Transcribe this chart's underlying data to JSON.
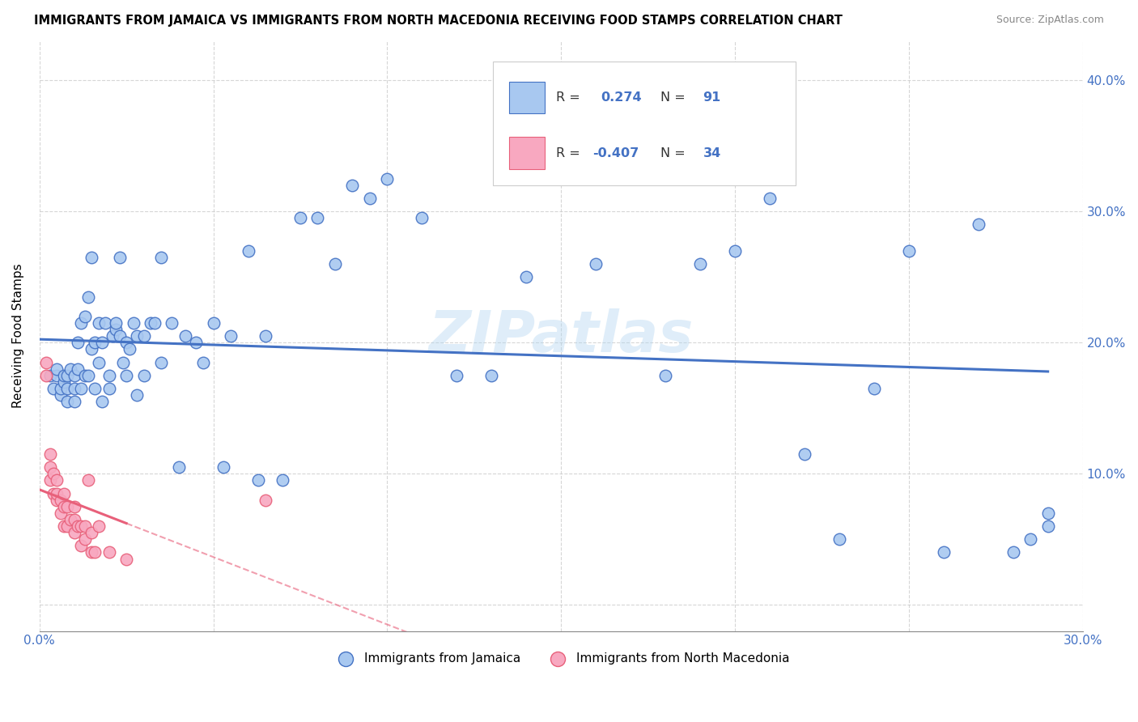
{
  "title": "IMMIGRANTS FROM JAMAICA VS IMMIGRANTS FROM NORTH MACEDONIA RECEIVING FOOD STAMPS CORRELATION CHART",
  "source": "Source: ZipAtlas.com",
  "ylabel": "Receiving Food Stamps",
  "xlim": [
    0.0,
    0.3
  ],
  "ylim": [
    -0.02,
    0.43
  ],
  "color_jamaica": "#a8c8f0",
  "color_macedonia": "#f8a8c0",
  "color_jamaica_line": "#4472c4",
  "color_macedonia_line": "#e8607a",
  "jamaica_scatter_x": [
    0.003,
    0.004,
    0.005,
    0.005,
    0.006,
    0.006,
    0.007,
    0.007,
    0.008,
    0.008,
    0.008,
    0.009,
    0.01,
    0.01,
    0.01,
    0.011,
    0.011,
    0.012,
    0.012,
    0.013,
    0.013,
    0.014,
    0.014,
    0.015,
    0.015,
    0.016,
    0.016,
    0.017,
    0.017,
    0.018,
    0.018,
    0.019,
    0.02,
    0.02,
    0.021,
    0.022,
    0.022,
    0.023,
    0.023,
    0.024,
    0.025,
    0.025,
    0.026,
    0.027,
    0.028,
    0.028,
    0.03,
    0.03,
    0.032,
    0.033,
    0.035,
    0.035,
    0.038,
    0.04,
    0.042,
    0.045,
    0.047,
    0.05,
    0.053,
    0.055,
    0.06,
    0.063,
    0.065,
    0.07,
    0.075,
    0.08,
    0.085,
    0.09,
    0.095,
    0.1,
    0.11,
    0.12,
    0.13,
    0.14,
    0.15,
    0.16,
    0.17,
    0.18,
    0.19,
    0.2,
    0.21,
    0.22,
    0.23,
    0.24,
    0.25,
    0.26,
    0.27,
    0.28,
    0.285,
    0.29,
    0.29
  ],
  "jamaica_scatter_y": [
    0.175,
    0.165,
    0.175,
    0.18,
    0.16,
    0.165,
    0.17,
    0.175,
    0.155,
    0.165,
    0.175,
    0.18,
    0.155,
    0.165,
    0.175,
    0.18,
    0.2,
    0.165,
    0.215,
    0.175,
    0.22,
    0.175,
    0.235,
    0.195,
    0.265,
    0.165,
    0.2,
    0.185,
    0.215,
    0.155,
    0.2,
    0.215,
    0.165,
    0.175,
    0.205,
    0.21,
    0.215,
    0.205,
    0.265,
    0.185,
    0.175,
    0.2,
    0.195,
    0.215,
    0.16,
    0.205,
    0.175,
    0.205,
    0.215,
    0.215,
    0.265,
    0.185,
    0.215,
    0.105,
    0.205,
    0.2,
    0.185,
    0.215,
    0.105,
    0.205,
    0.27,
    0.095,
    0.205,
    0.095,
    0.295,
    0.295,
    0.26,
    0.32,
    0.31,
    0.325,
    0.295,
    0.175,
    0.175,
    0.25,
    0.36,
    0.26,
    0.37,
    0.175,
    0.26,
    0.27,
    0.31,
    0.115,
    0.05,
    0.165,
    0.27,
    0.04,
    0.29,
    0.04,
    0.05,
    0.07,
    0.06
  ],
  "macedonia_scatter_x": [
    0.002,
    0.002,
    0.003,
    0.003,
    0.003,
    0.004,
    0.004,
    0.005,
    0.005,
    0.005,
    0.006,
    0.006,
    0.007,
    0.007,
    0.007,
    0.008,
    0.008,
    0.009,
    0.01,
    0.01,
    0.01,
    0.011,
    0.012,
    0.012,
    0.013,
    0.013,
    0.014,
    0.015,
    0.015,
    0.016,
    0.017,
    0.02,
    0.025,
    0.065
  ],
  "macedonia_scatter_y": [
    0.175,
    0.185,
    0.095,
    0.105,
    0.115,
    0.085,
    0.1,
    0.08,
    0.085,
    0.095,
    0.07,
    0.08,
    0.06,
    0.075,
    0.085,
    0.06,
    0.075,
    0.065,
    0.055,
    0.065,
    0.075,
    0.06,
    0.045,
    0.06,
    0.05,
    0.06,
    0.095,
    0.04,
    0.055,
    0.04,
    0.06,
    0.04,
    0.035,
    0.08
  ],
  "watermark": "ZIPatlas",
  "background_color": "#ffffff",
  "legend_R_jamaica": "0.274",
  "legend_N_jamaica": "91",
  "legend_R_macedonia": "-0.407",
  "legend_N_macedonia": "34"
}
